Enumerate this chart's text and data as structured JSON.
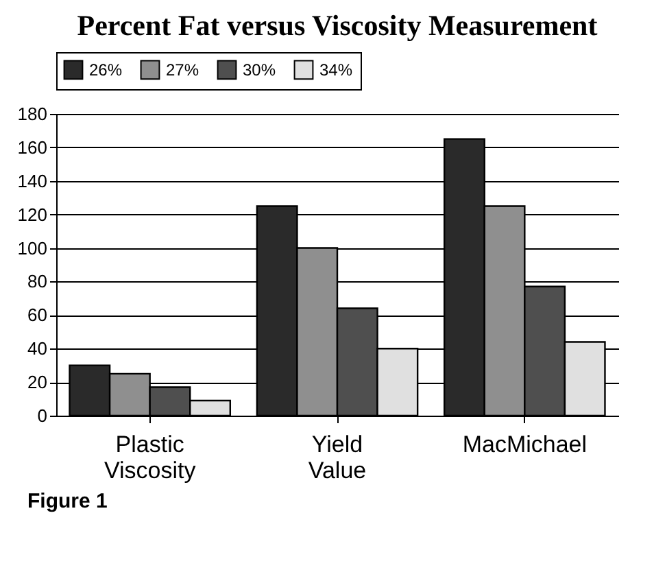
{
  "chart_data": {
    "type": "bar",
    "title": "Percent Fat versus Viscosity Measurement",
    "categories": [
      "Plastic Viscosity",
      "Yield Value",
      "MacMichael"
    ],
    "series": [
      {
        "name": "26%",
        "color": "#2a2a2a",
        "values": [
          30,
          125,
          165
        ]
      },
      {
        "name": "27%",
        "color": "#8f8f8f",
        "values": [
          25,
          100,
          125
        ]
      },
      {
        "name": "30%",
        "color": "#4f4f4f",
        "values": [
          17,
          64,
          77
        ]
      },
      {
        "name": "34%",
        "color": "#e0e0e0",
        "values": [
          9,
          40,
          44
        ]
      }
    ],
    "ylim": [
      0,
      180
    ],
    "yticks": [
      0,
      20,
      40,
      60,
      80,
      100,
      120,
      140,
      160,
      180
    ],
    "grid": "y",
    "legend": "top",
    "annotations": [
      "Figure 1"
    ]
  }
}
